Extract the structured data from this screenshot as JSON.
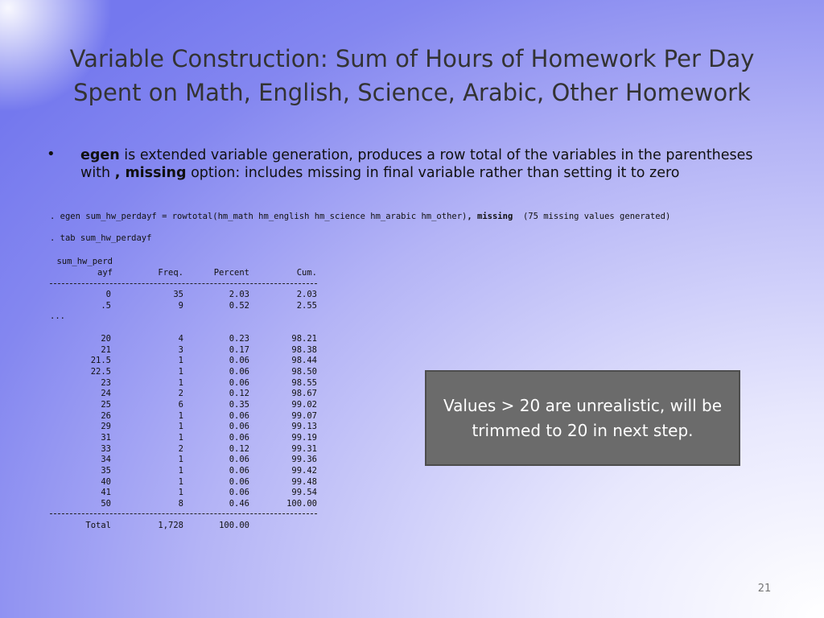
{
  "title": [
    "Variable Construction: Sum of Hours of Homework Per Day",
    "Spent on Math, English, Science, Arabic, Other Homework"
  ],
  "bullet": [
    {
      "text": "egen",
      "bold": true
    },
    {
      "text": " is extended variable generation, produces a row total of the variables in the parentheses with ",
      "bold": false
    },
    {
      "text": ", missing",
      "bold": true
    },
    {
      "text": " option: includes missing in final variable rather than setting it to zero",
      "bold": false
    }
  ],
  "code": {
    "egen_command": ". egen sum_hw_perdayf = rowtotal(hm_math hm_english hm_science hm_arabic hm_other)",
    "egen_option": ", missing",
    "egen_note": "(75 missing values generated)",
    "tab_command": ". tab sum_hw_perdayf"
  },
  "table": {
    "varname_top": "sum_hw_perd",
    "varname_bottom": "ayf",
    "columns": [
      "Freq.",
      "Percent",
      "Cum."
    ],
    "rows_top": [
      [
        "0",
        "35",
        "2.03",
        "2.03"
      ],
      [
        ".5",
        "9",
        "0.52",
        "2.55"
      ]
    ],
    "ellipsis": "...",
    "rows_bottom": [
      [
        "20",
        "4",
        "0.23",
        "98.21"
      ],
      [
        "21",
        "3",
        "0.17",
        "98.38"
      ],
      [
        "21.5",
        "1",
        "0.06",
        "98.44"
      ],
      [
        "22.5",
        "1",
        "0.06",
        "98.50"
      ],
      [
        "23",
        "1",
        "0.06",
        "98.55"
      ],
      [
        "24",
        "2",
        "0.12",
        "98.67"
      ],
      [
        "25",
        "6",
        "0.35",
        "99.02"
      ],
      [
        "26",
        "1",
        "0.06",
        "99.07"
      ],
      [
        "29",
        "1",
        "0.06",
        "99.13"
      ],
      [
        "31",
        "1",
        "0.06",
        "99.19"
      ],
      [
        "33",
        "2",
        "0.12",
        "99.31"
      ],
      [
        "34",
        "1",
        "0.06",
        "99.36"
      ],
      [
        "35",
        "1",
        "0.06",
        "99.42"
      ],
      [
        "40",
        "1",
        "0.06",
        "99.48"
      ],
      [
        "41",
        "1",
        "0.06",
        "99.54"
      ],
      [
        "50",
        "8",
        "0.46",
        "100.00"
      ]
    ],
    "total": {
      "label": "Total",
      "freq": "1,728",
      "percent": "100.00"
    }
  },
  "callout": "Values > 20 are unrealistic, will be trimmed to 20 in next step.",
  "page_number": "21"
}
